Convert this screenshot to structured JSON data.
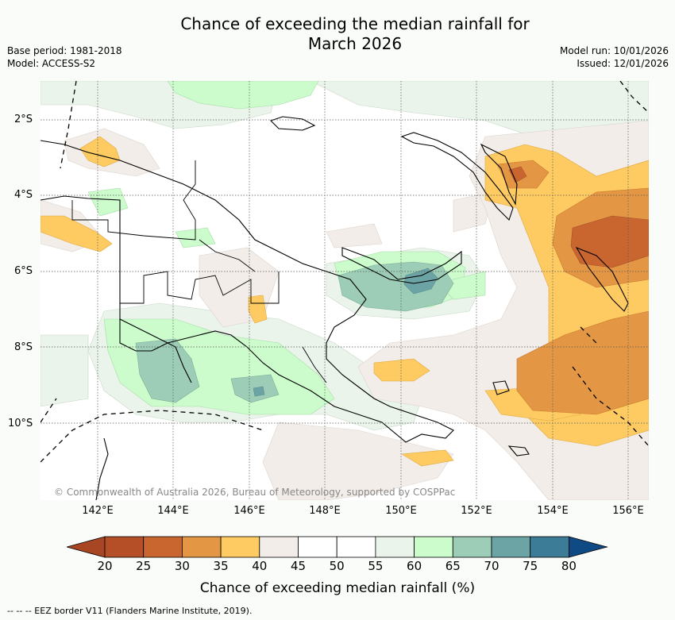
{
  "title_line1": "Chance of exceeding the median rainfall for",
  "title_line2": "March 2026",
  "base_period": "Base period: 1981-2018",
  "model": "Model: ACCESS-S2",
  "model_run": "Model run: 10/01/2026",
  "issued": "Issued: 12/01/2026",
  "copyright": "© Commonwealth of Australia 2026, Bureau of Meteorology, supported by COSPPac",
  "lat_labels": [
    "2°S",
    "4°S",
    "6°S",
    "8°S",
    "10°S"
  ],
  "lon_labels": [
    "142°E",
    "144°E",
    "146°E",
    "148°E",
    "150°E",
    "152°E",
    "154°E",
    "156°E"
  ],
  "colorbar": {
    "title": "Chance of exceeding median rainfall (%)",
    "ticks": [
      "20",
      "25",
      "30",
      "35",
      "40",
      "45",
      "50",
      "55",
      "60",
      "65",
      "70",
      "75",
      "80"
    ],
    "colors": [
      "#a84624",
      "#b44f28",
      "#c9652f",
      "#e39745",
      "#fdcb62",
      "#f2ede8",
      "#ffffff",
      "#ffffff",
      "#eaf4ea",
      "#ccfbcc",
      "#9dccb7",
      "#6ca4a5",
      "#3d7c97",
      "#0f4a85"
    ]
  },
  "footer": "--  --  -- EEZ border V11 (Flanders Marine Institute, 2019)."
}
